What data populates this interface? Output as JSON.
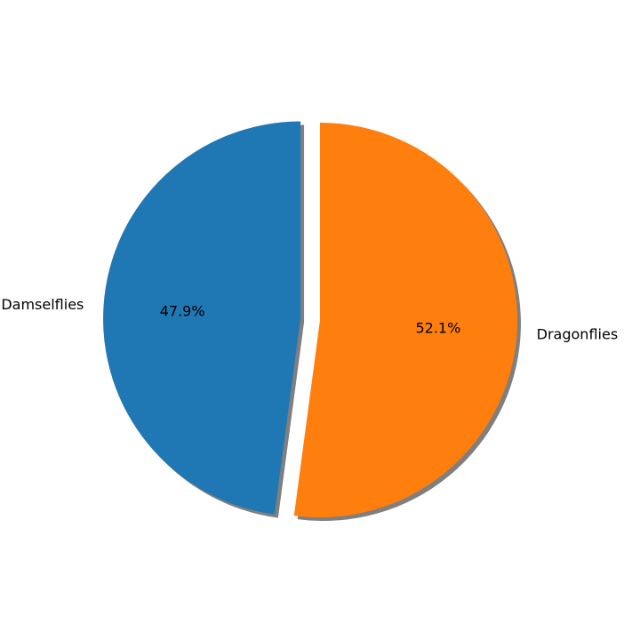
{
  "chart_data": {
    "type": "pie",
    "title": "",
    "categories": [
      "Damselflies",
      "Dragonflies"
    ],
    "values": [
      47.9,
      52.1
    ],
    "percent_labels": [
      "47.9%",
      "52.1%"
    ],
    "colors": [
      "#1f77b4",
      "#ff7f0e"
    ],
    "exploded": [
      true,
      false
    ],
    "shadow": true,
    "start_angle_deg": 90,
    "direction": "counterclockwise"
  }
}
